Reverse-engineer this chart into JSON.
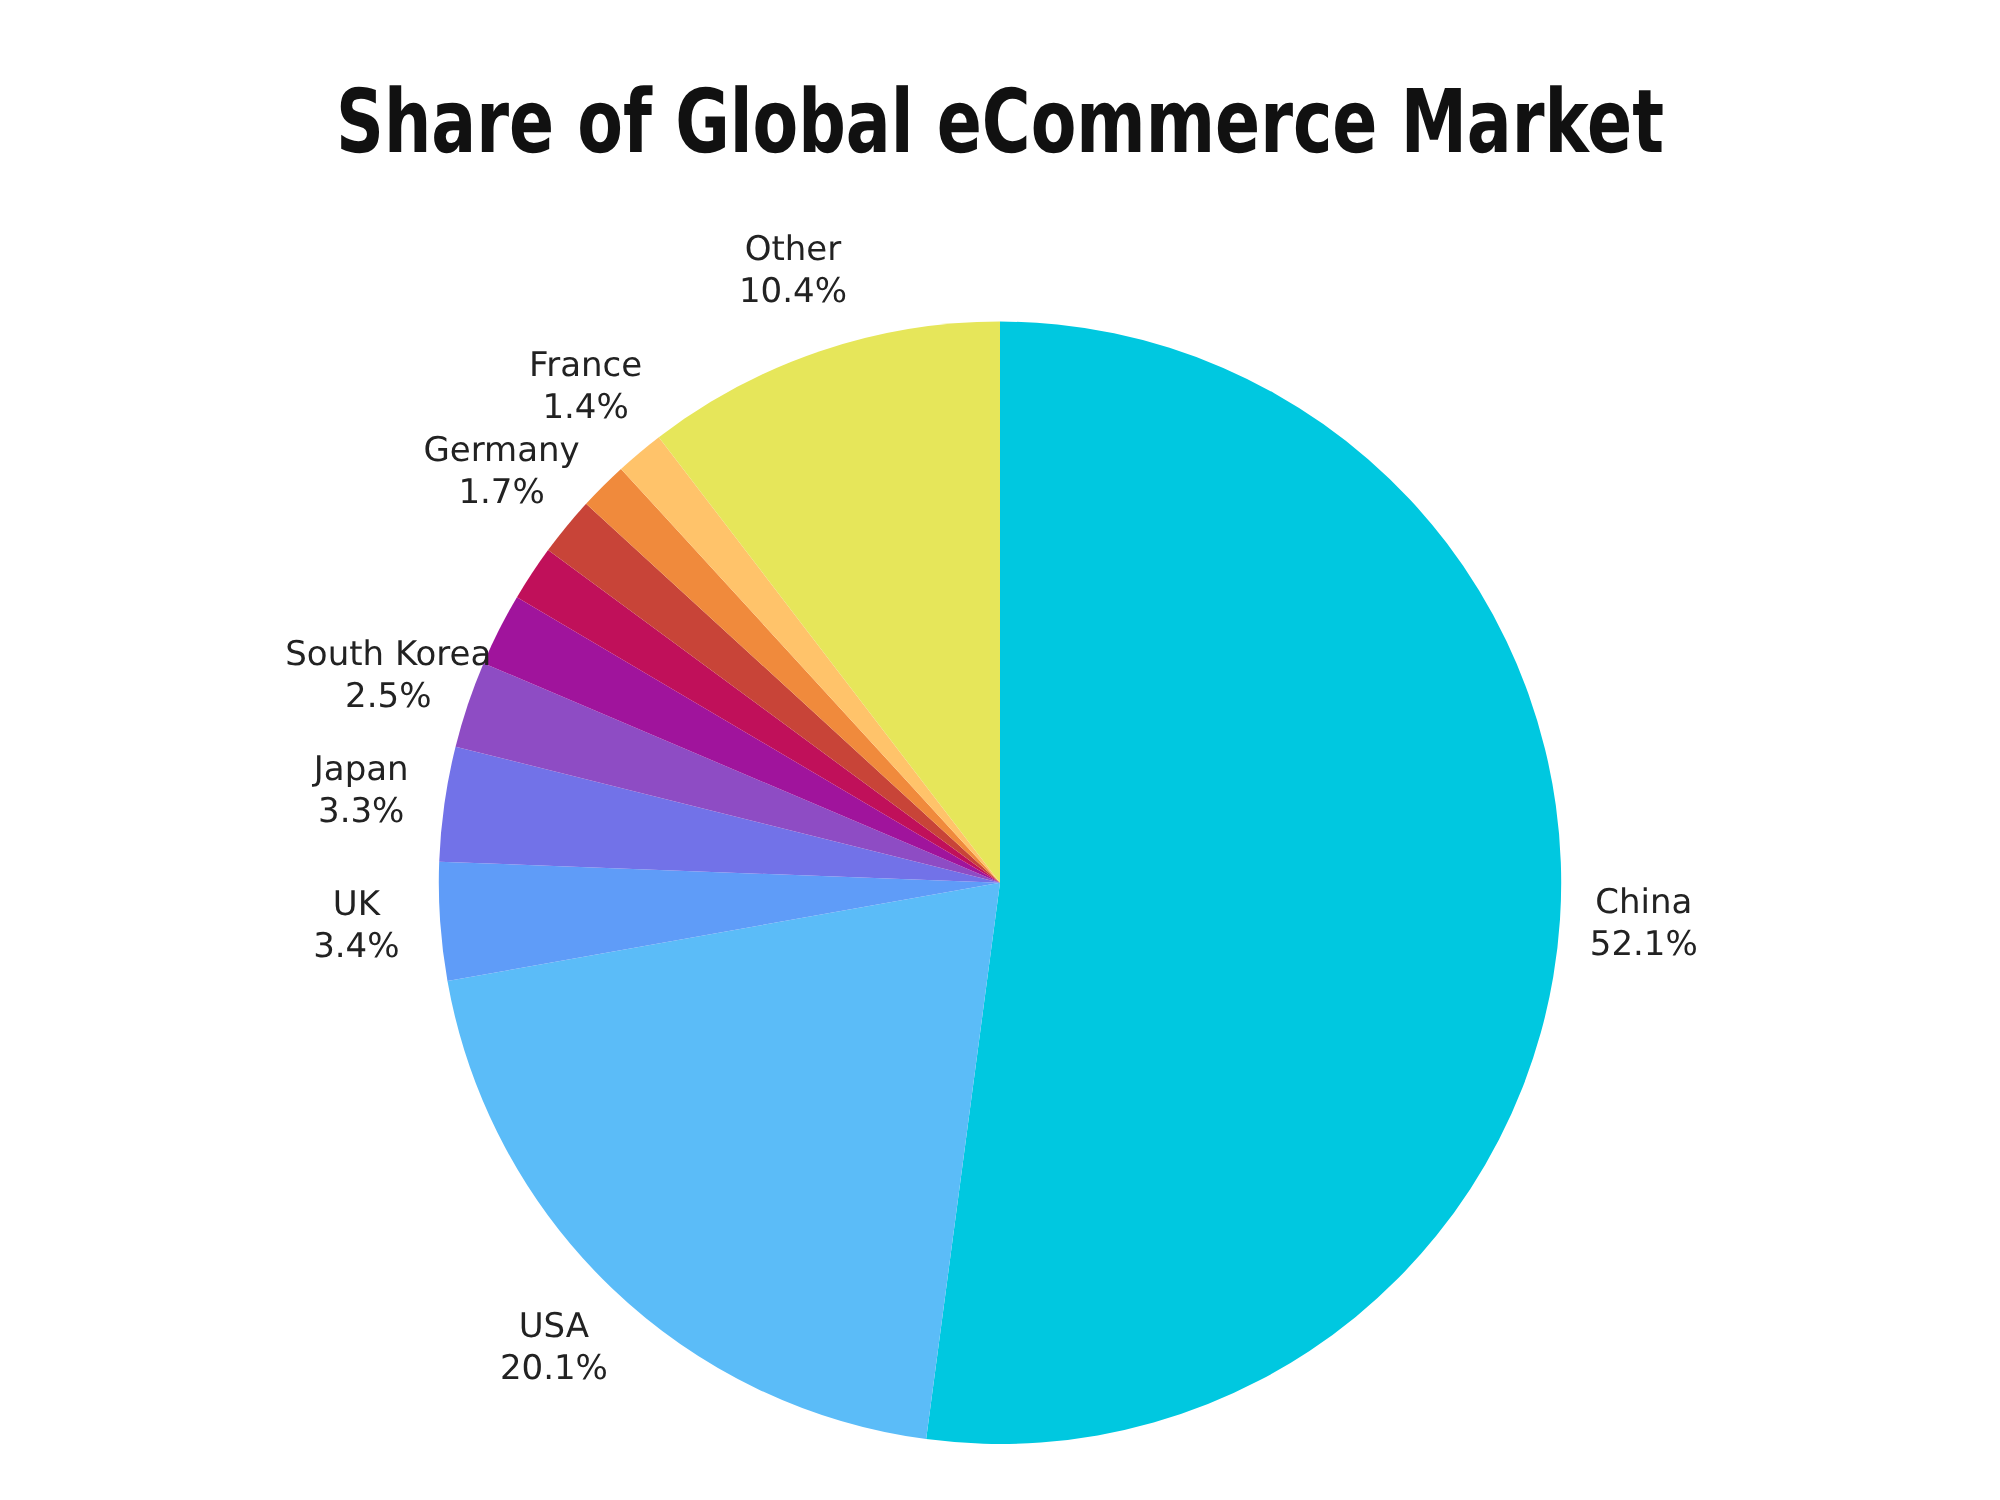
{
  "chart_data": {
    "type": "pie",
    "title": "Share of Global eCommerce Market",
    "categories": [
      "China",
      "USA",
      "UK",
      "Japan",
      "South Korea",
      null,
      null,
      "Germany",
      null,
      "France",
      "Other"
    ],
    "values": [
      52.1,
      20.1,
      3.4,
      3.3,
      2.5,
      2.1,
      1.6,
      1.7,
      1.4,
      1.4,
      10.4
    ],
    "value_labels": [
      "52.1%",
      "20.1%",
      "3.4%",
      "3.3%",
      "2.5%",
      null,
      null,
      "1.7%",
      null,
      "1.4%",
      "10.4%"
    ],
    "colors": [
      "#00c8e0",
      "#5bbcf8",
      "#5f9cf8",
      "#7272e8",
      "#8e4cc4",
      "#a0149c",
      "#c0105a",
      "#c84438",
      "#f08a3c",
      "#ffc36a",
      "#e6e65a"
    ],
    "legend": false
  }
}
